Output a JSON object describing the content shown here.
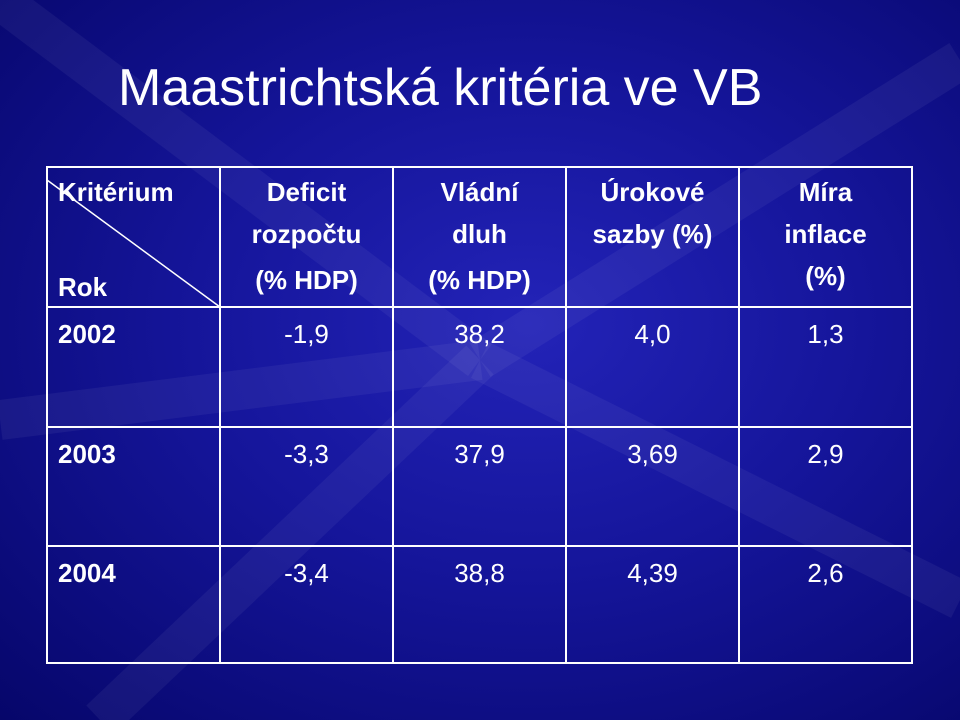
{
  "title": "Maastrichtská kritéria ve VB",
  "table": {
    "corner": {
      "top": "Kritérium",
      "bottom": "Rok"
    },
    "columns": [
      {
        "lines": [
          "Deficit",
          "rozpočtu"
        ],
        "unit": "(% HDP)"
      },
      {
        "lines": [
          "Vládní",
          "dluh"
        ],
        "unit": "(% HDP)"
      },
      {
        "lines": [
          "Úrokové",
          "sazby (%)"
        ]
      },
      {
        "lines": [
          "Míra",
          "inflace",
          "(%)"
        ]
      }
    ],
    "rows": [
      [
        "2002",
        "-1,9",
        "38,2",
        "4,0",
        "1,3"
      ],
      [
        "2003",
        "-3,3",
        "37,9",
        "3,69",
        "2,9"
      ],
      [
        "2004",
        "-3,4",
        "38,8",
        "4,39",
        "2,6"
      ]
    ]
  }
}
